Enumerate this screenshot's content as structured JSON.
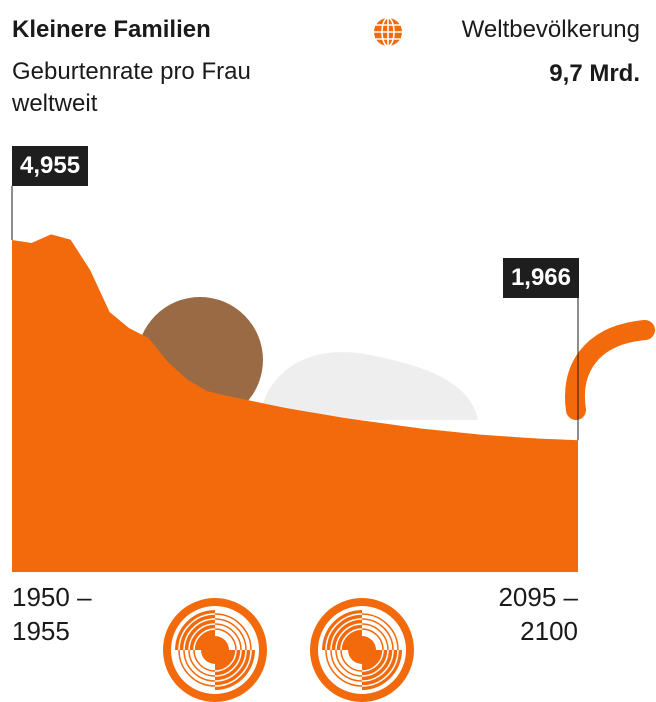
{
  "chart_data": {
    "type": "area",
    "title": "Kleinere Familien",
    "subtitle": "Geburtenrate pro Frau weltweit",
    "annotation": {
      "label": "Weltbevölkerung",
      "text": "9,7 Mrd."
    },
    "categories": [
      "1950 – 1955",
      null,
      null,
      null,
      null,
      null,
      null,
      null,
      null,
      null,
      null,
      null,
      null,
      null,
      null,
      null,
      null,
      null,
      null,
      null,
      null,
      null,
      null,
      null,
      null,
      null,
      null,
      null,
      null,
      "2095 – 2100"
    ],
    "values": [
      4.955,
      4.91,
      5.04,
      4.96,
      4.51,
      3.88,
      3.64,
      3.49,
      3.13,
      2.87,
      2.7,
      2.63,
      2.57,
      2.51,
      2.45,
      2.4,
      2.35,
      2.3,
      2.26,
      2.22,
      2.18,
      2.14,
      2.11,
      2.08,
      2.05,
      2.03,
      2.01,
      1.99,
      1.98,
      1.966
    ],
    "value_labels": [
      "4,955",
      null,
      null,
      null,
      null,
      null,
      null,
      null,
      null,
      null,
      null,
      null,
      null,
      null,
      null,
      null,
      null,
      null,
      null,
      null,
      null,
      null,
      null,
      null,
      null,
      null,
      null,
      null,
      null,
      "1,966"
    ],
    "color": "#f26a0c",
    "ylim": [
      0,
      5
    ]
  }
}
